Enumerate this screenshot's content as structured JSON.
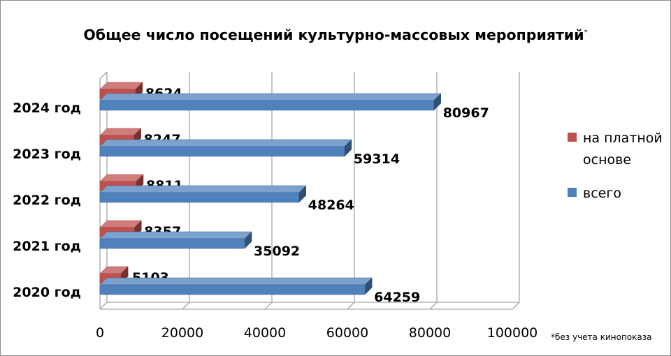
{
  "chart_data": {
    "type": "bar",
    "orientation": "horizontal",
    "three_d": true,
    "title": "Общее число посещений культурно-массовых мероприятий",
    "title_marker": "*",
    "categories": [
      "2020 год",
      "2021 год",
      "2022 год",
      "2023 год",
      "2024 год"
    ],
    "series": [
      {
        "name": "на платной основе",
        "color": "#c0504d",
        "values": [
          5103,
          8357,
          8811,
          8247,
          8624
        ]
      },
      {
        "name": "всего",
        "color": "#4f81bd",
        "values": [
          64259,
          35092,
          48264,
          59314,
          80967
        ]
      }
    ],
    "xlim": [
      0,
      100000
    ],
    "x_ticks": [
      0,
      20000,
      40000,
      60000,
      80000,
      100000
    ],
    "grid": true,
    "legend_position": "right",
    "footnote": "*без учета кинопоказа"
  },
  "legend": {
    "paid_line1": "на платной",
    "paid_line2": "основе",
    "total": "всего"
  }
}
